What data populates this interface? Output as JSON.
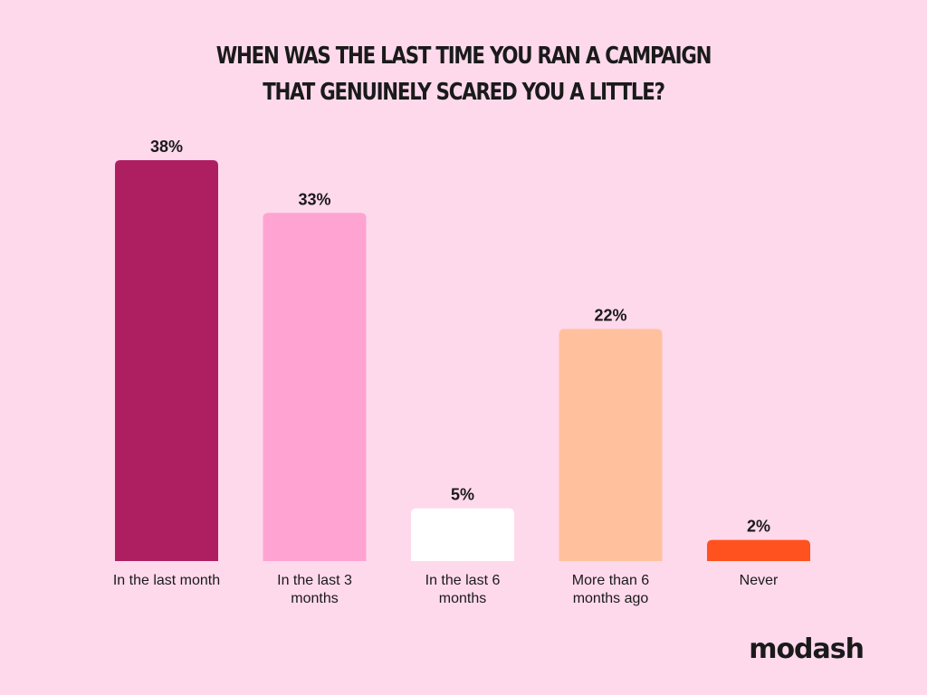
{
  "chart_data": {
    "type": "bar",
    "title_lines": [
      "WHEN WAS THE LAST TIME YOU RAN A CAMPAIGN",
      "THAT GENUINELY SCARED YOU A LITTLE?"
    ],
    "categories": [
      [
        "In the last month"
      ],
      [
        "In the last 3",
        "months"
      ],
      [
        "In the last 6",
        "months"
      ],
      [
        "More than 6",
        "months ago"
      ],
      [
        "Never"
      ]
    ],
    "values": [
      38,
      33,
      5,
      22,
      2
    ],
    "value_labels": [
      "38%",
      "33%",
      "5%",
      "22%",
      "2%"
    ],
    "colors": [
      "#AE1F62",
      "#FFA3D2",
      "#FFFFFF",
      "#FFC19D",
      "#FF521E"
    ],
    "ylim": [
      0,
      38
    ],
    "grid": false
  },
  "brand": {
    "logo_text": "modash"
  },
  "colors": {
    "background": "#FED9EC",
    "text": "#1a1a1a"
  }
}
